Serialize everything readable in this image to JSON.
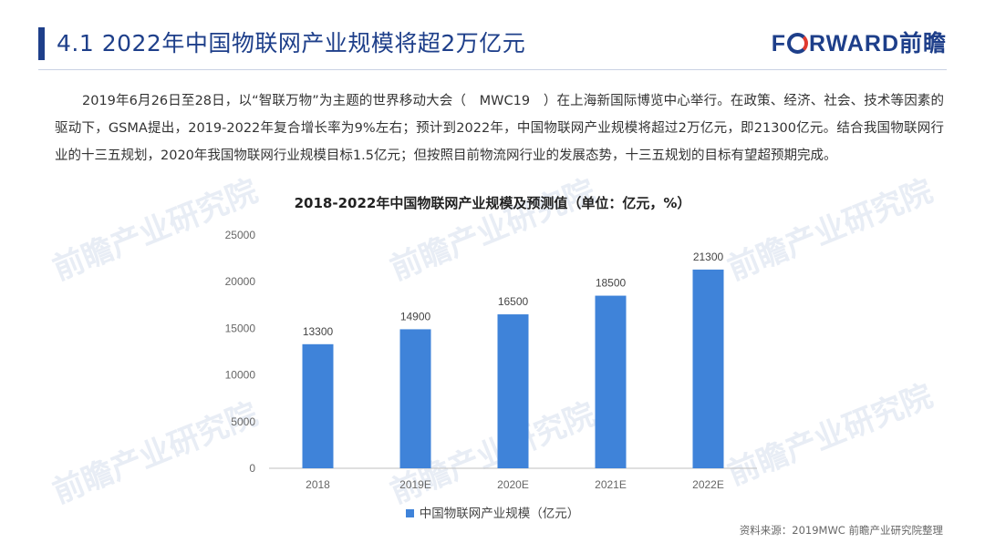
{
  "header": {
    "title": "4.1 2022年中国物联网产业规模将超2万亿元",
    "logo_text": "FORWARD前瞻",
    "accent_color": "#1e3f8a"
  },
  "body_text": "2019年6月26日至28日，以“智联万物”为主题的世界移动大会（　MWC19　）在上海新国际博览中心举行。在政策、经济、社会、技术等因素的驱动下，GSMA提出，2019-2022年复合增长率为9%左右；预计到2022年，中国物联网产业规模将超过2万亿元，即21300亿元。结合我国物联网行业的十三五规划，2020年我国物联网行业规模目标1.5亿元；但按照目前物流网行业的发展态势，十三五规划的目标有望超预期完成。",
  "watermark_text": "前瞻产业研究院",
  "chart_data": {
    "type": "bar",
    "title": "2018-2022年中国物联网产业规模及预测值（单位：亿元，%）",
    "categories": [
      "2018",
      "2019E",
      "2020E",
      "2021E",
      "2022E"
    ],
    "series": [
      {
        "name": "中国物联网产业规模（亿元）",
        "values": [
          13300,
          14900,
          16500,
          18500,
          21300
        ],
        "color": "#3f83d9"
      }
    ],
    "ylim": [
      0,
      25000
    ],
    "yticks": [
      0,
      5000,
      10000,
      15000,
      20000,
      25000
    ],
    "grid": false,
    "legend": "bottom",
    "data_labels": true
  },
  "source": "资料来源：2019MWC 前瞻产业研究院整理"
}
